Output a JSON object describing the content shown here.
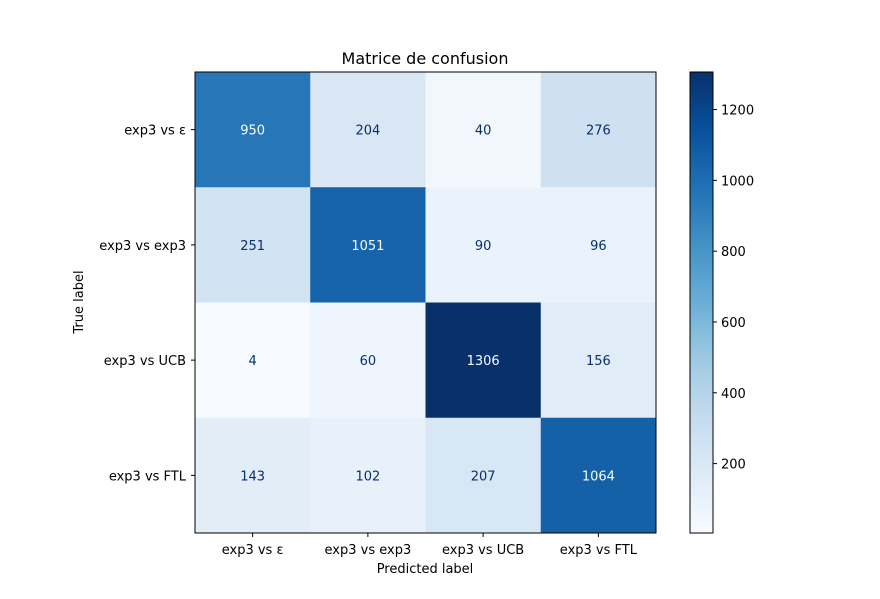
{
  "chart_data": {
    "type": "heatmap",
    "title": "Matrice de confusion",
    "xlabel": "Predicted label",
    "ylabel": "True label",
    "x_categories": [
      "exp3 vs ε",
      "exp3 vs exp3",
      "exp3 vs UCB",
      "exp3 vs FTL"
    ],
    "y_categories": [
      "exp3 vs ε",
      "exp3 vs exp3",
      "exp3 vs UCB",
      "exp3 vs FTL"
    ],
    "values": [
      [
        950,
        204,
        40,
        276
      ],
      [
        251,
        1051,
        90,
        96
      ],
      [
        4,
        60,
        1306,
        156
      ],
      [
        143,
        102,
        207,
        1064
      ]
    ],
    "colormap": "Blues",
    "colorbar": {
      "vmin": 4,
      "vmax": 1306,
      "ticks": [
        200,
        400,
        600,
        800,
        1000,
        1200
      ]
    },
    "grid": false
  }
}
